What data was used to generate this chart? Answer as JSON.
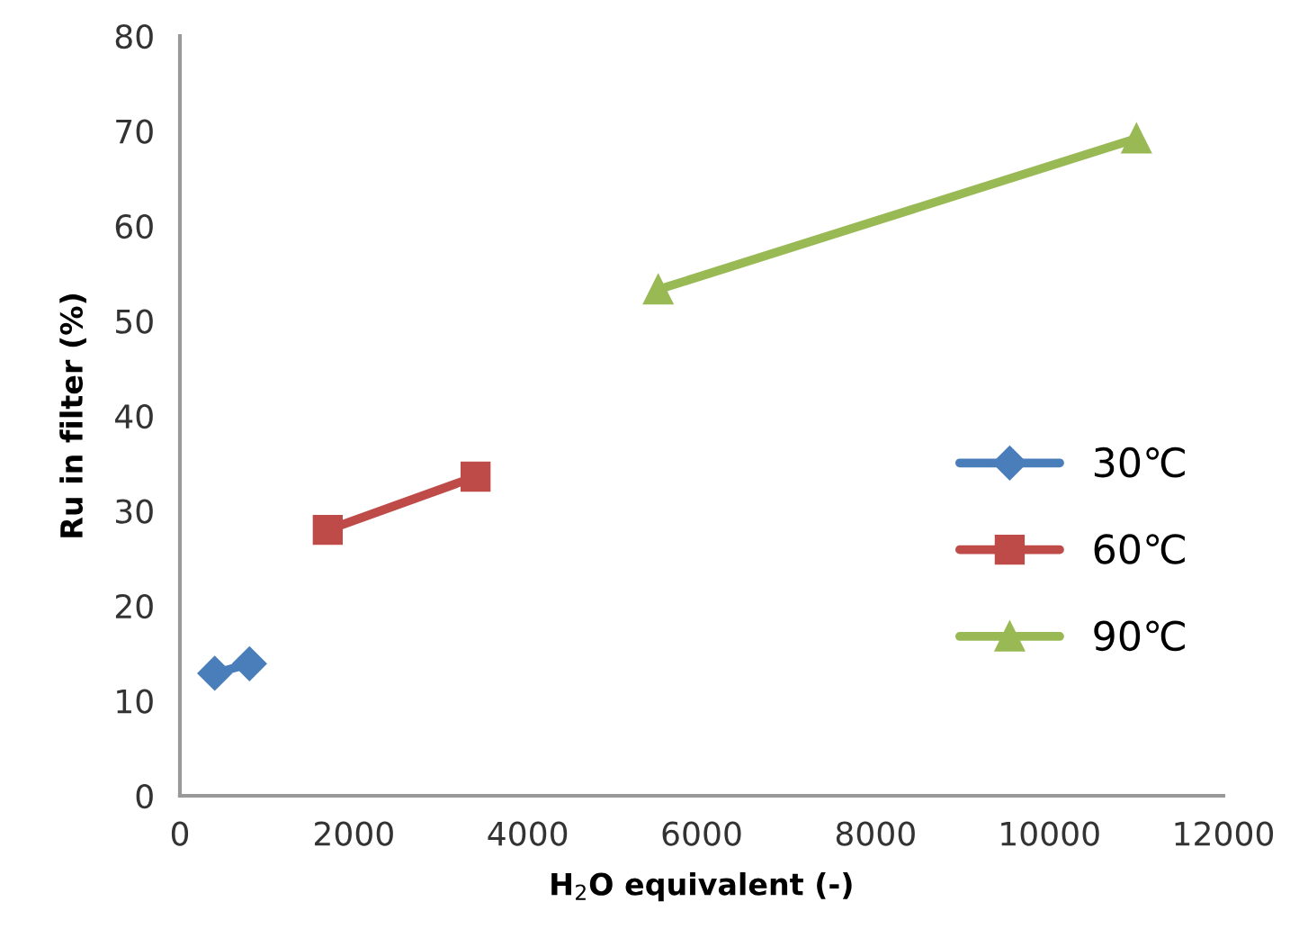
{
  "chart_data": {
    "type": "line",
    "xlabel": "H$_{2}$O equivalent (-)",
    "ylabel": "Ru in filter (%)",
    "xlim": [
      0,
      12000
    ],
    "xticks": [
      0,
      2000,
      4000,
      6000,
      8000,
      10000,
      12000
    ],
    "ylim": [
      0,
      80
    ],
    "yticks": [
      0,
      10,
      20,
      30,
      40,
      50,
      60,
      70,
      80
    ],
    "grid": false,
    "legend": "right",
    "line_style": "solid",
    "series": [
      {
        "name": "30℃",
        "color": "#4a7ebb",
        "marker": "diamond",
        "x": [
          400,
          800
        ],
        "values": [
          12.9,
          13.9
        ]
      },
      {
        "name": "60℃",
        "color": "#be4b48",
        "marker": "square",
        "x": [
          1700,
          3400
        ],
        "values": [
          28,
          33.6
        ]
      },
      {
        "name": "90℃",
        "color": "#98b954",
        "marker": "triangle",
        "x": [
          5500,
          11000
        ],
        "values": [
          53.3,
          69.2
        ]
      }
    ]
  }
}
